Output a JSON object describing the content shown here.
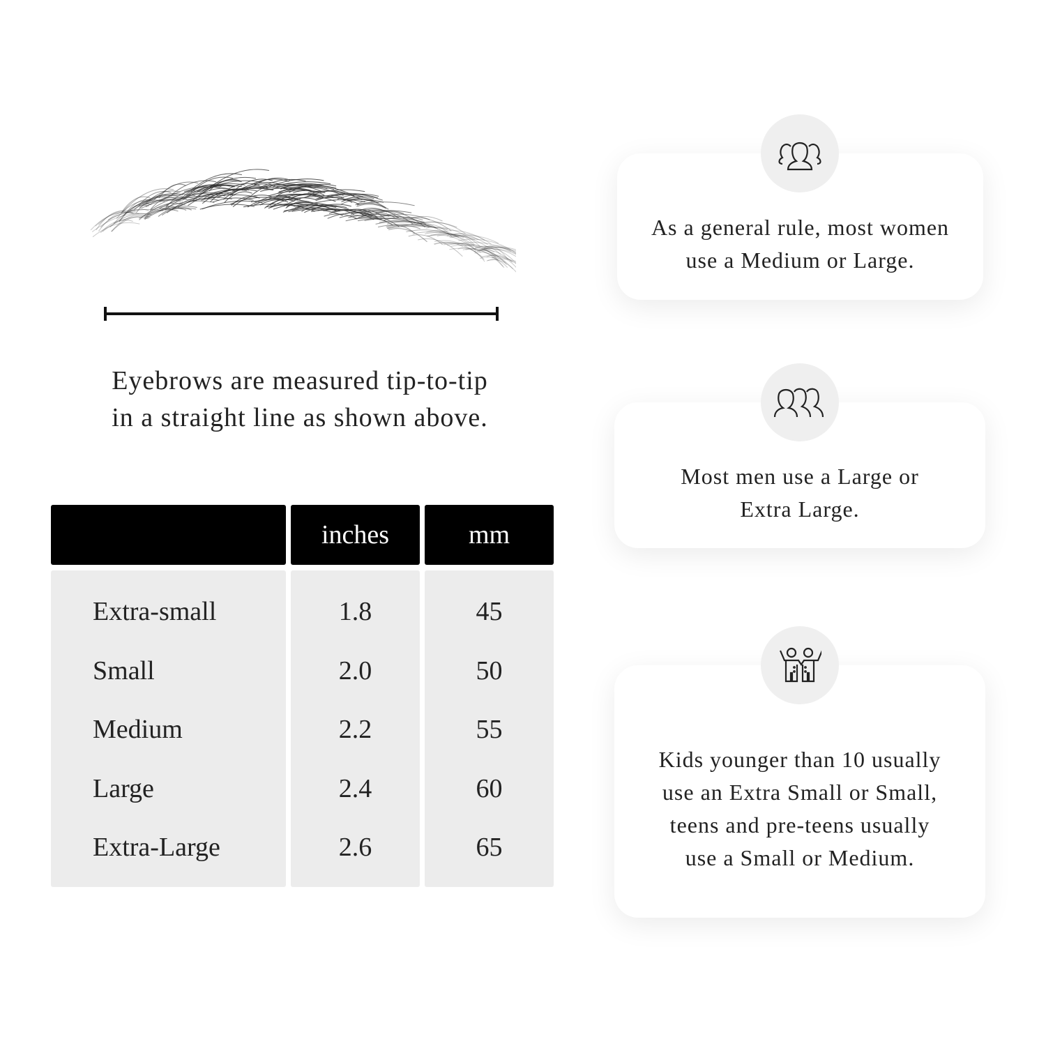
{
  "measurement": {
    "caption_line1": "Eyebrows are measured tip-to-tip",
    "caption_line2": "in a straight line as shown above."
  },
  "table": {
    "headers": [
      "",
      "inches",
      "mm"
    ],
    "rows": [
      {
        "size": "Extra-small",
        "inches": "1.8",
        "mm": "45"
      },
      {
        "size": "Small",
        "inches": "2.0",
        "mm": "50"
      },
      {
        "size": "Medium",
        "inches": "2.2",
        "mm": "55"
      },
      {
        "size": "Large",
        "inches": "2.4",
        "mm": "60"
      },
      {
        "size": "Extra-Large",
        "inches": "2.6",
        "mm": "65"
      }
    ]
  },
  "cards": [
    {
      "icon": "women-group-icon",
      "text": "As a general rule, most women use a Medium or Large."
    },
    {
      "icon": "men-group-icon",
      "text": "Most men use a Large or Extra Large."
    },
    {
      "icon": "kids-icon",
      "text": "Kids younger than 10 usually use an Extra Small or Small, teens and pre-teens usually use a Small or Medium."
    }
  ],
  "colors": {
    "header_bg": "#000000",
    "cell_bg": "#ececec",
    "icon_circle": "#efefef"
  }
}
